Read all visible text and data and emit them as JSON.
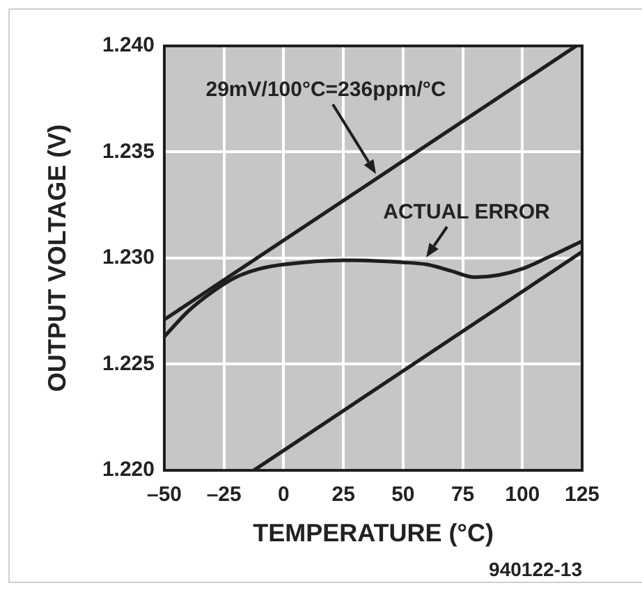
{
  "chart_data": {
    "type": "line",
    "xlabel": "TEMPERATURE (°C)",
    "ylabel": "OUTPUT VOLTAGE (V)",
    "xlim": [
      -50,
      125
    ],
    "xticks": [
      {
        "value": -50,
        "label": "–50"
      },
      {
        "value": -25,
        "label": "–25"
      },
      0,
      25,
      50,
      75,
      100,
      125
    ],
    "ylim": [
      1.22,
      1.24
    ],
    "yticks": [
      {
        "value": 1.22,
        "label": "1.220"
      },
      {
        "value": 1.225,
        "label": "1.225"
      },
      {
        "value": 1.23,
        "label": "1.230"
      },
      {
        "value": 1.235,
        "label": "1.235"
      },
      {
        "value": 1.24,
        "label": "1.240"
      }
    ],
    "grid": true,
    "marker": "none",
    "line_style": "solid",
    "series": [
      {
        "color": "#1e1e1e",
        "x": [
          -50,
          122.5
        ],
        "values": [
          1.2271,
          1.24
        ]
      },
      {
        "color": "#1e1e1e",
        "x": [
          -50,
          -40,
          -30,
          -20,
          -10,
          0,
          25,
          50,
          60,
          70,
          80,
          90,
          100,
          110,
          125
        ],
        "values": [
          1.2263,
          1.2275,
          1.2284,
          1.2291,
          1.2295,
          1.2297,
          1.2299,
          1.2298,
          1.2297,
          1.2294,
          1.2291,
          1.2292,
          1.2295,
          1.23,
          1.2308
        ]
      },
      {
        "color": "#1e1e1e",
        "x": [
          -12.5,
          125
        ],
        "values": [
          1.22,
          1.2303
        ]
      }
    ],
    "annotations": [
      "29mV/100°C=236ppm/°C",
      "ACTUAL ERROR",
      "940122-13"
    ]
  }
}
